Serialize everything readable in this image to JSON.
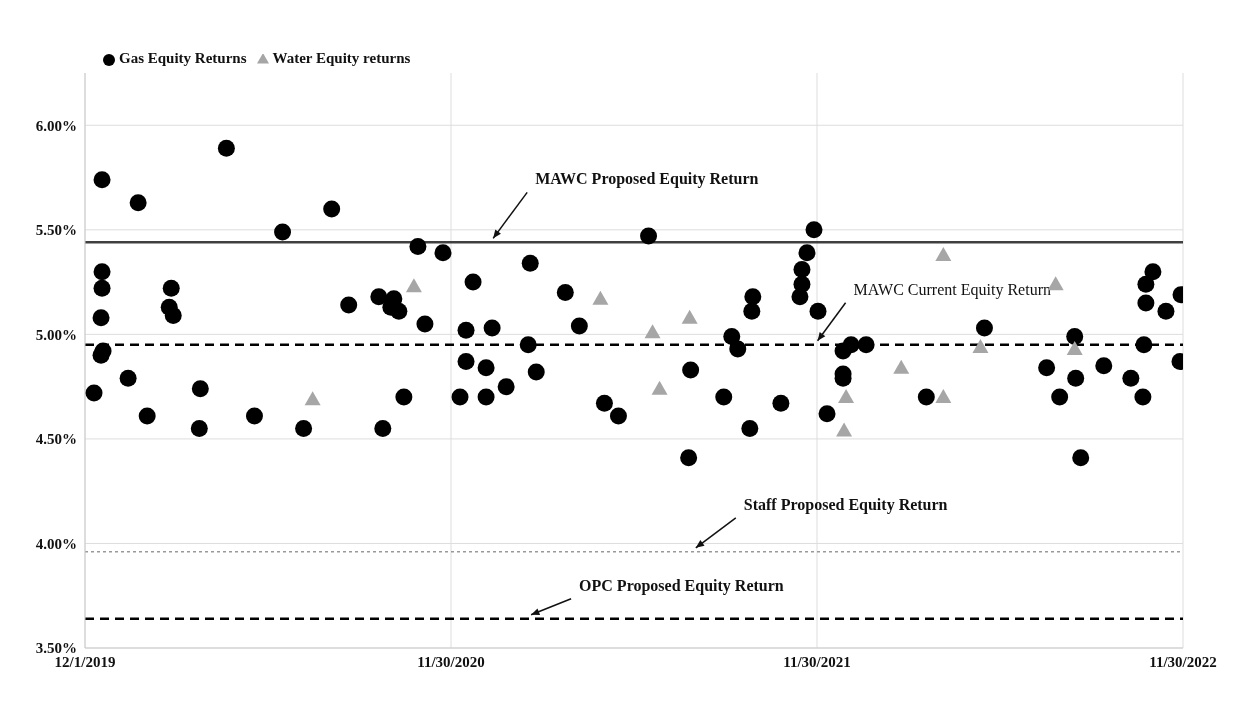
{
  "chart_data": {
    "type": "scatter",
    "xlim": [
      "2019-12-01",
      "2022-11-30"
    ],
    "xticks": [
      {
        "value": "2019-12-01",
        "label": "12/1/2019"
      },
      {
        "value": "2020-11-30",
        "label": "11/30/2020"
      },
      {
        "value": "2021-11-30",
        "label": "11/30/2021"
      },
      {
        "value": "2022-11-30",
        "label": "11/30/2022"
      }
    ],
    "ylim": [
      3.5,
      6.25
    ],
    "yticks": [
      {
        "value": 3.5,
        "label": "3.50%"
      },
      {
        "value": 4,
        "label": "4.00%"
      },
      {
        "value": 4.5,
        "label": "4.50%"
      },
      {
        "value": 5,
        "label": "5.00%"
      },
      {
        "value": 5.5,
        "label": "5.50%"
      },
      {
        "value": 6,
        "label": "6.00%"
      }
    ],
    "grid": true,
    "legend": "top left",
    "series": [
      {
        "name": "Gas Equity Returns",
        "color": "#000000",
        "marker": "circle",
        "x": [
          "2019-12-10",
          "2019-12-18",
          "2019-12-18",
          "2019-12-18",
          "2019-12-17",
          "2019-12-19",
          "2019-12-17",
          "2020-01-13",
          "2020-01-23",
          "2020-02-01",
          "2020-02-25",
          "2020-02-23",
          "2020-02-27",
          "2020-03-25",
          "2020-03-24",
          "2020-04-20",
          "2020-05-18",
          "2020-06-15",
          "2020-07-06",
          "2020-08-03",
          "2020-08-20",
          "2020-09-19",
          "2020-09-23",
          "2020-10-04",
          "2020-10-01",
          "2020-10-09",
          "2020-10-14",
          "2020-10-28",
          "2020-11-04",
          "2020-11-22",
          "2020-12-09",
          "2020-12-15",
          "2020-12-15",
          "2020-12-22",
          "2021-01-04",
          "2021-01-04",
          "2021-01-10",
          "2021-01-24",
          "2021-02-15",
          "2021-02-17",
          "2021-02-23",
          "2021-03-24",
          "2021-04-07",
          "2021-05-02",
          "2021-05-16",
          "2021-06-15",
          "2021-07-25",
          "2021-07-27",
          "2021-08-29",
          "2021-09-06",
          "2021-09-12",
          "2021-09-24",
          "2021-09-26",
          "2021-09-27",
          "2021-10-25",
          "2021-11-13",
          "2021-11-15",
          "2021-11-15",
          "2021-11-20",
          "2021-11-27",
          "2021-12-01",
          "2021-12-10",
          "2021-12-26",
          "2021-12-26",
          "2021-12-26",
          "2022-01-03",
          "2022-01-18",
          "2022-03-19",
          "2022-05-16",
          "2022-07-17",
          "2022-07-30",
          "2022-08-14",
          "2022-08-15",
          "2022-08-20",
          "2022-09-12",
          "2022-10-09",
          "2022-10-21",
          "2022-10-22",
          "2022-10-24",
          "2022-10-24",
          "2022-10-31",
          "2022-11-13",
          "2022-11-28",
          "2022-11-27"
        ],
        "values": [
          4.72,
          5.74,
          5.3,
          5.22,
          5.08,
          4.92,
          4.9,
          4.79,
          5.63,
          4.61,
          5.22,
          5.13,
          5.09,
          4.74,
          4.55,
          5.89,
          4.61,
          5.49,
          4.55,
          5.6,
          5.14,
          5.18,
          4.55,
          5.17,
          5.13,
          5.11,
          4.7,
          5.42,
          5.05,
          5.39,
          4.7,
          5.02,
          4.87,
          5.25,
          4.84,
          4.7,
          5.03,
          4.75,
          4.95,
          5.34,
          4.82,
          5.2,
          5.04,
          4.67,
          4.61,
          5.47,
          4.41,
          4.83,
          4.7,
          4.99,
          4.93,
          4.55,
          5.11,
          5.18,
          4.67,
          5.18,
          5.24,
          5.31,
          5.39,
          5.5,
          5.11,
          4.62,
          4.92,
          4.81,
          4.79,
          4.95,
          4.95,
          4.7,
          5.03,
          4.84,
          4.7,
          4.99,
          4.79,
          4.41,
          4.85,
          4.79,
          4.7,
          4.95,
          5.15,
          5.24,
          5.3,
          5.11,
          5.19,
          4.87
        ]
      },
      {
        "name": "Water Equity returns",
        "color": "#a6a6a6",
        "marker": "triangle",
        "x": [
          "2020-07-15",
          "2020-10-24",
          "2021-04-28",
          "2021-06-19",
          "2021-06-26",
          "2021-07-26",
          "2021-12-27",
          "2021-12-29",
          "2022-02-22",
          "2022-04-05",
          "2022-04-05",
          "2022-05-12",
          "2022-07-26",
          "2022-08-14"
        ],
        "values": [
          4.69,
          5.23,
          5.17,
          5.01,
          4.74,
          5.08,
          4.54,
          4.7,
          4.84,
          5.38,
          4.7,
          4.94,
          5.24,
          4.93
        ]
      }
    ],
    "ref_lines": [
      {
        "axis": "y",
        "value": 5.44,
        "label": "MAWC Proposed Equity Return",
        "color": "#404040",
        "line_style": "solid"
      },
      {
        "axis": "y",
        "value": 4.95,
        "label": "MAWC Current Equity Return",
        "color": "#000000",
        "line_style": "dashed"
      },
      {
        "axis": "y",
        "value": 3.96,
        "label": "Staff Proposed Equity Return",
        "color": "#999999",
        "line_style": "dotted"
      },
      {
        "axis": "y",
        "value": 3.64,
        "label": "OPC Proposed Equity Return",
        "color": "#000000",
        "line_style": "dashed"
      }
    ]
  }
}
